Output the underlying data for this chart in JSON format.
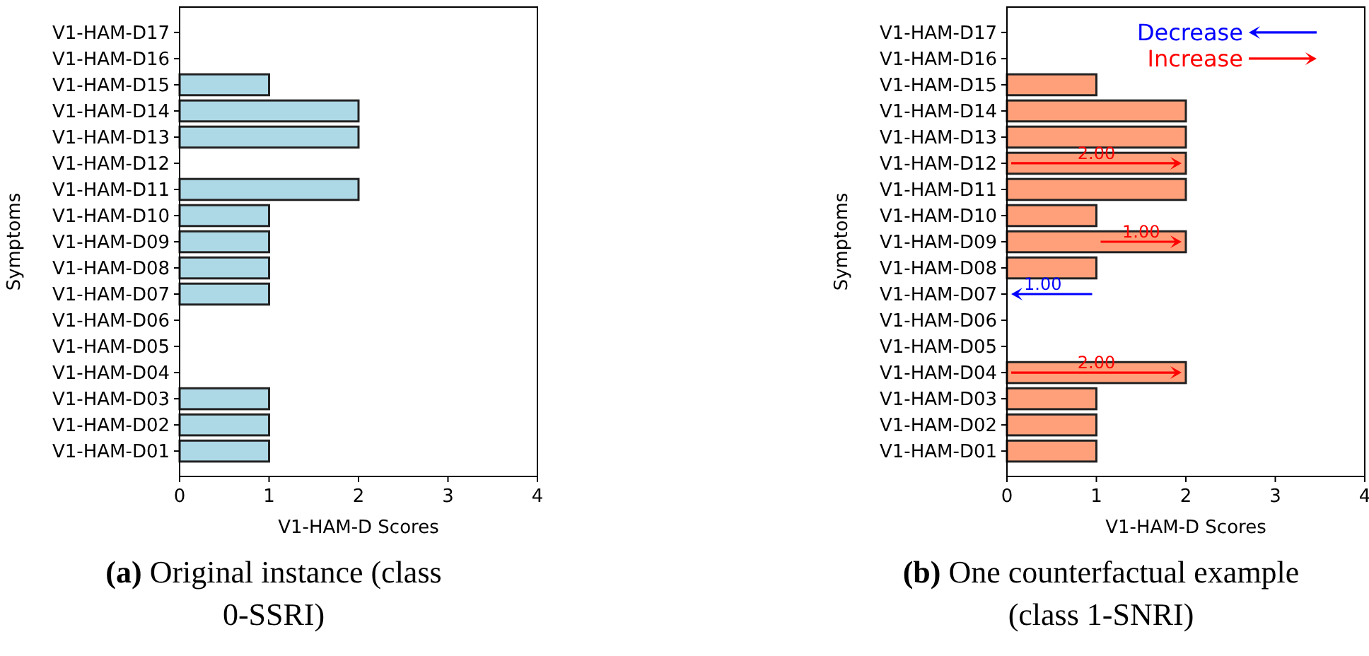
{
  "chart_data": [
    {
      "type": "bar",
      "orientation": "horizontal",
      "categories": [
        "V1-HAM-D17",
        "V1-HAM-D16",
        "V1-HAM-D15",
        "V1-HAM-D14",
        "V1-HAM-D13",
        "V1-HAM-D12",
        "V1-HAM-D11",
        "V1-HAM-D10",
        "V1-HAM-D09",
        "V1-HAM-D08",
        "V1-HAM-D07",
        "V1-HAM-D06",
        "V1-HAM-D05",
        "V1-HAM-D04",
        "V1-HAM-D03",
        "V1-HAM-D02",
        "V1-HAM-D01"
      ],
      "values": [
        0,
        0,
        1,
        2,
        2,
        0,
        2,
        1,
        1,
        1,
        1,
        0,
        0,
        0,
        1,
        1,
        1
      ],
      "color": "#add8e6",
      "xlim": [
        0,
        4
      ],
      "xticks": [
        0,
        1,
        2,
        3,
        4
      ],
      "xlabel": "V1-HAM-D Scores",
      "ylabel": "Symptoms",
      "annotations": [
        "(a) Original instance (class 0-SSRI)"
      ]
    },
    {
      "type": "bar",
      "orientation": "horizontal",
      "categories": [
        "V1-HAM-D17",
        "V1-HAM-D16",
        "V1-HAM-D15",
        "V1-HAM-D14",
        "V1-HAM-D13",
        "V1-HAM-D12",
        "V1-HAM-D11",
        "V1-HAM-D10",
        "V1-HAM-D09",
        "V1-HAM-D08",
        "V1-HAM-D07",
        "V1-HAM-D06",
        "V1-HAM-D05",
        "V1-HAM-D04",
        "V1-HAM-D03",
        "V1-HAM-D02",
        "V1-HAM-D01"
      ],
      "values": [
        0,
        0,
        1,
        2,
        2,
        2,
        2,
        1,
        2,
        1,
        0,
        0,
        0,
        2,
        1,
        1,
        1
      ],
      "color": "#ffa07a",
      "xlim": [
        0,
        4
      ],
      "xticks": [
        0,
        1,
        2,
        3,
        4
      ],
      "xlabel": "V1-HAM-D Scores",
      "ylabel": "Symptoms",
      "annotations": [
        "Decrease",
        "Increase",
        {
          "text": "2.00",
          "x": 1,
          "y": "V1-HAM-D12"
        },
        {
          "text": "1.00",
          "x": 1.5,
          "y": "V1-HAM-D09"
        },
        {
          "text": "1.00",
          "x": 0,
          "y": "V1-HAM-D07"
        },
        {
          "text": "2.00",
          "x": 1,
          "y": "V1-HAM-D04"
        },
        "(b) One counterfactual example (class 1-SNRI)"
      ]
    }
  ]
}
